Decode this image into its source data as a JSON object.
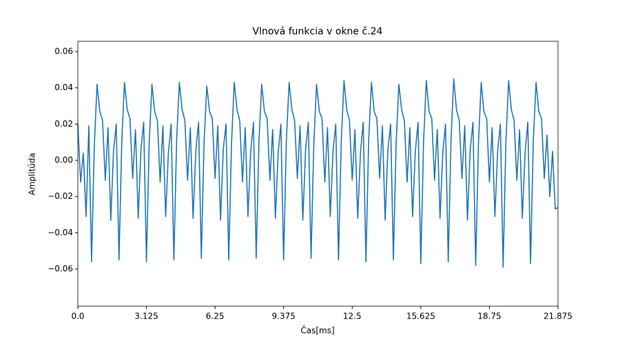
{
  "chart_data": {
    "type": "line",
    "title": "Vlnová funkcia v okne č.24",
    "xlabel": "Čas[ms]",
    "ylabel": "Amplitúda",
    "xlim": [
      0,
      21.875
    ],
    "ylim": [
      -0.0805,
      0.0657
    ],
    "xticks": [
      {
        "value": 0,
        "label": "0.0"
      },
      3.125,
      6.25,
      9.375,
      12.5,
      15.625,
      18.75,
      21.875
    ],
    "yticks": [
      {
        "value": -0.06,
        "label": "−0.06"
      },
      {
        "value": -0.04,
        "label": "−0.04"
      },
      {
        "value": -0.02,
        "label": "−0.02"
      },
      {
        "value": 0,
        "label": "0.00"
      },
      {
        "value": 0.02,
        "label": "0.02"
      },
      {
        "value": 0.04,
        "label": "0.04"
      },
      {
        "value": 0.06,
        "label": "0.06"
      }
    ],
    "series": [
      {
        "color": "#1f77b4",
        "x": [
          0,
          0.125,
          0.25,
          0.375,
          0.5,
          0.625,
          0.75,
          0.875,
          1,
          1.125,
          1.25,
          1.375,
          1.5,
          1.625,
          1.75,
          1.875,
          2,
          2.125,
          2.25,
          2.375,
          2.5,
          2.625,
          2.75,
          2.875,
          3,
          3.125,
          3.25,
          3.375,
          3.5,
          3.625,
          3.75,
          3.875,
          4,
          4.125,
          4.25,
          4.375,
          4.5,
          4.625,
          4.75,
          4.875,
          5,
          5.125,
          5.25,
          5.375,
          5.5,
          5.625,
          5.75,
          5.875,
          6,
          6.125,
          6.25,
          6.375,
          6.5,
          6.625,
          6.75,
          6.875,
          7,
          7.125,
          7.25,
          7.375,
          7.5,
          7.625,
          7.75,
          7.875,
          8,
          8.125,
          8.25,
          8.375,
          8.5,
          8.625,
          8.75,
          8.875,
          9,
          9.125,
          9.25,
          9.375,
          9.5,
          9.625,
          9.75,
          9.875,
          10,
          10.125,
          10.25,
          10.375,
          10.5,
          10.625,
          10.75,
          10.875,
          11,
          11.125,
          11.25,
          11.375,
          11.5,
          11.625,
          11.75,
          11.875,
          12,
          12.125,
          12.25,
          12.375,
          12.5,
          12.625,
          12.75,
          12.875,
          13,
          13.125,
          13.25,
          13.375,
          13.5,
          13.625,
          13.75,
          13.875,
          14,
          14.125,
          14.25,
          14.375,
          14.5,
          14.625,
          14.75,
          14.875,
          15,
          15.125,
          15.25,
          15.375,
          15.5,
          15.625,
          15.75,
          15.875,
          16,
          16.125,
          16.25,
          16.375,
          16.5,
          16.625,
          16.75,
          16.875,
          17,
          17.125,
          17.25,
          17.375,
          17.5,
          17.625,
          17.75,
          17.875,
          18,
          18.125,
          18.25,
          18.375,
          18.5,
          18.625,
          18.75,
          18.875,
          19,
          19.125,
          19.25,
          19.375,
          19.5,
          19.625,
          19.75,
          19.875,
          20,
          20.125,
          20.25,
          20.375,
          20.5,
          20.625,
          20.75,
          20.875,
          21,
          21.125,
          21.25,
          21.375,
          21.5,
          21.625,
          21.75,
          21.875
        ],
        "values": [
          0.02,
          -0.012,
          0.004,
          -0.031,
          0.019,
          -0.056,
          0.008,
          0.042,
          0.027,
          0.022,
          -0.011,
          0.018,
          -0.033,
          0.005,
          0.02,
          -0.055,
          0.01,
          0.043,
          0.028,
          0.023,
          -0.01,
          0.017,
          -0.032,
          0.006,
          0.021,
          -0.056,
          0.009,
          0.042,
          0.027,
          0.022,
          -0.012,
          0.019,
          -0.031,
          0.004,
          0.02,
          -0.055,
          0.011,
          0.043,
          0.028,
          0.022,
          -0.011,
          0.018,
          -0.032,
          0.005,
          0.021,
          -0.054,
          0.01,
          0.041,
          0.027,
          0.023,
          -0.01,
          0.019,
          -0.033,
          0.006,
          0.02,
          -0.055,
          0.009,
          0.043,
          0.028,
          0.022,
          -0.012,
          0.018,
          -0.031,
          0.005,
          0.021,
          -0.054,
          0.01,
          0.042,
          0.027,
          0.023,
          -0.011,
          0.017,
          -0.032,
          0.004,
          0.02,
          -0.055,
          0.011,
          0.043,
          0.028,
          0.022,
          -0.01,
          0.019,
          -0.033,
          0.006,
          0.021,
          -0.054,
          0.009,
          0.042,
          0.027,
          0.023,
          -0.012,
          0.018,
          -0.031,
          0.005,
          0.02,
          -0.055,
          0.01,
          0.044,
          0.028,
          0.022,
          -0.011,
          0.017,
          -0.032,
          0.004,
          0.021,
          -0.056,
          0.011,
          0.043,
          0.027,
          0.023,
          -0.01,
          0.019,
          -0.033,
          0.006,
          0.02,
          -0.055,
          0.009,
          0.042,
          0.028,
          0.022,
          -0.012,
          0.018,
          -0.031,
          0.005,
          0.021,
          -0.057,
          0.01,
          0.044,
          0.027,
          0.023,
          -0.011,
          0.017,
          -0.032,
          0.004,
          0.02,
          -0.056,
          0.011,
          0.045,
          0.028,
          0.022,
          -0.01,
          0.019,
          -0.033,
          0.006,
          0.021,
          -0.058,
          0.009,
          0.043,
          0.027,
          0.023,
          -0.012,
          0.018,
          -0.031,
          0.005,
          0.02,
          -0.059,
          0.01,
          0.044,
          0.028,
          0.022,
          -0.011,
          0.017,
          -0.032,
          0.004,
          0.021,
          -0.057,
          0.011,
          0.043,
          0.027,
          0.023,
          -0.01,
          0.014,
          -0.02,
          0.005,
          -0.027,
          -0.026
        ]
      }
    ]
  }
}
